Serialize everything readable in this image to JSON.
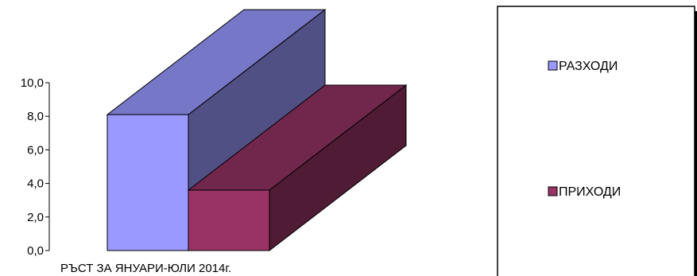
{
  "chart_data": {
    "type": "bar",
    "categories": [
      "РЪСТ ЗА ЯНУАРИ-ЮЛИ 2014г."
    ],
    "series": [
      {
        "name": "РАЗХОДИ",
        "values": [
          8.1
        ],
        "color": "#9999ff"
      },
      {
        "name": "ПРИХОДИ",
        "values": [
          3.6
        ],
        "color": "#993366"
      }
    ],
    "ylim": [
      0,
      10
    ],
    "y_ticks": [
      "0,0",
      "2,0",
      "4,0",
      "6,0",
      "8,0",
      "10,0"
    ],
    "y_tick_values": [
      0,
      2,
      4,
      6,
      8,
      10
    ],
    "legend_position": "right",
    "grid": false,
    "style": "3d-stacked-depth"
  }
}
